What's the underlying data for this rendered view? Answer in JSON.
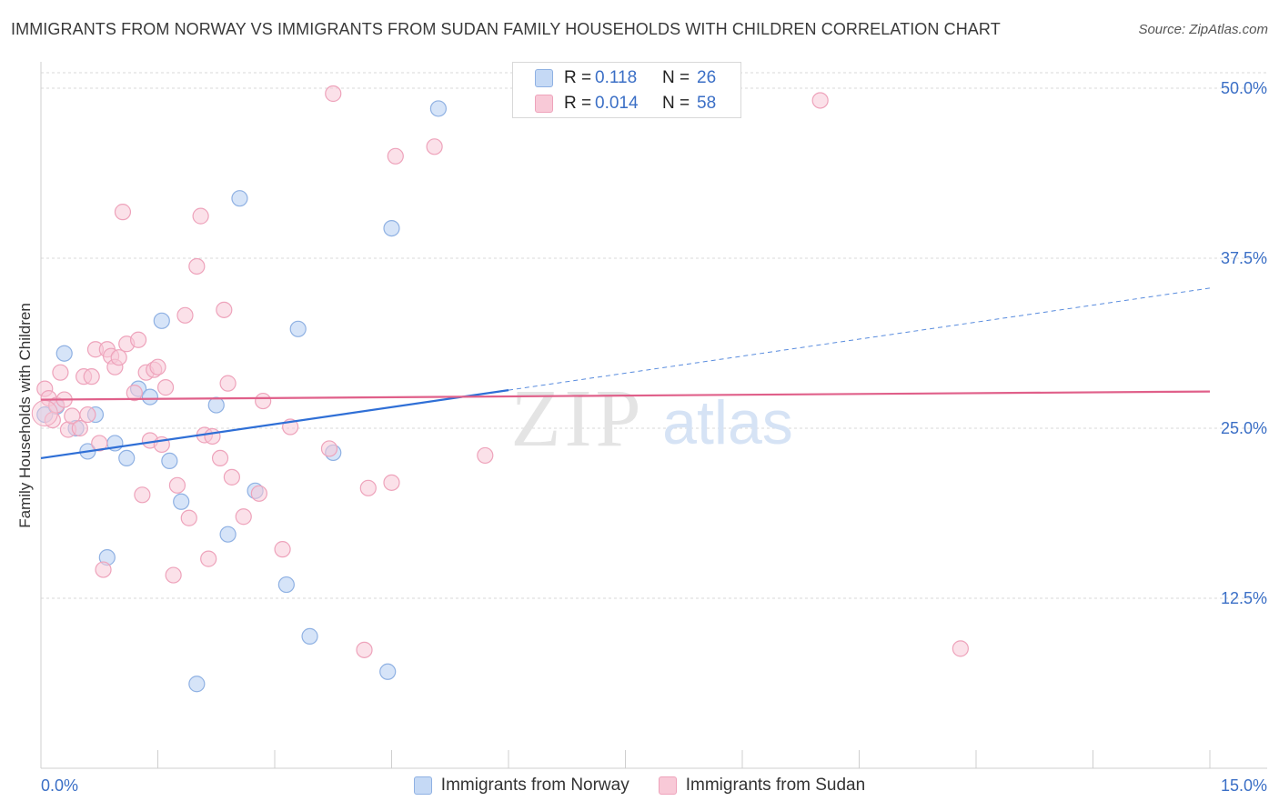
{
  "title": "IMMIGRANTS FROM NORWAY VS IMMIGRANTS FROM SUDAN FAMILY HOUSEHOLDS WITH CHILDREN CORRELATION CHART",
  "source": "Source: ZipAtlas.com",
  "watermark": {
    "zip": "ZIP",
    "atlas": "atlas"
  },
  "colors": {
    "norway_fill": "#c5d9f5",
    "norway_stroke": "#8fb1e3",
    "norway_line": "#2f6fd6",
    "sudan_fill": "#f8c9d7",
    "sudan_stroke": "#eea3bb",
    "sudan_line": "#e0608a",
    "axis_label": "#3b6fc6",
    "grid": "#d9d9d9"
  },
  "legend_box": {
    "norway": {
      "r_label": "R =",
      "r_value": "0.118",
      "n_label": "N =",
      "n_value": "26"
    },
    "sudan": {
      "r_label": "R =",
      "r_value": "0.014",
      "n_label": "N =",
      "n_value": "58"
    }
  },
  "chart_data": {
    "type": "scatter",
    "title": "IMMIGRANTS FROM NORWAY VS IMMIGRANTS FROM SUDAN FAMILY HOUSEHOLDS WITH CHILDREN CORRELATION CHART",
    "xlabel": "",
    "ylabel": "Family Households with Children",
    "xlim": [
      0,
      15
    ],
    "ylim": [
      0,
      50
    ],
    "x_tick_labels": {
      "left": "0.0%",
      "right": "15.0%"
    },
    "y_ticks": [
      {
        "value": 12.5,
        "label": "12.5%"
      },
      {
        "value": 25.0,
        "label": "25.0%"
      },
      {
        "value": 37.5,
        "label": "37.5%"
      },
      {
        "value": 50.0,
        "label": "50.0%"
      }
    ],
    "legend": [
      "Immigrants from Norway",
      "Immigrants from Sudan"
    ],
    "series": [
      {
        "name": "Immigrants from Norway",
        "r": 0.118,
        "n": 26,
        "trend": {
          "x0": 0,
          "y0": 22.8,
          "x1": 6.0,
          "y1": 27.8,
          "dashed_to_x": 15,
          "dashed_to_y": 35.3
        },
        "points": [
          [
            0.05,
            26.0
          ],
          [
            0.2,
            26.6
          ],
          [
            0.3,
            30.5
          ],
          [
            0.45,
            25.0
          ],
          [
            0.6,
            23.3
          ],
          [
            0.7,
            26.0
          ],
          [
            0.95,
            23.9
          ],
          [
            1.1,
            22.8
          ],
          [
            1.25,
            27.9
          ],
          [
            1.4,
            27.3
          ],
          [
            1.55,
            32.9
          ],
          [
            1.65,
            22.6
          ],
          [
            1.8,
            19.6
          ],
          [
            2.0,
            6.2
          ],
          [
            2.25,
            26.7
          ],
          [
            2.4,
            17.2
          ],
          [
            2.55,
            41.9
          ],
          [
            2.75,
            20.4
          ],
          [
            3.15,
            13.5
          ],
          [
            3.3,
            32.3
          ],
          [
            3.45,
            9.7
          ],
          [
            3.75,
            23.2
          ],
          [
            4.45,
            7.1
          ],
          [
            4.5,
            39.7
          ],
          [
            5.1,
            48.5
          ],
          [
            0.85,
            15.5
          ]
        ]
      },
      {
        "name": "Immigrants from Sudan",
        "r": 0.014,
        "n": 58,
        "trend": {
          "x0": 0,
          "y0": 27.1,
          "x1": 15,
          "y1": 27.7
        },
        "points": [
          [
            0.05,
            27.9
          ],
          [
            0.1,
            27.2
          ],
          [
            0.2,
            26.7
          ],
          [
            0.25,
            29.1
          ],
          [
            0.3,
            27.1
          ],
          [
            0.35,
            24.9
          ],
          [
            0.4,
            25.9
          ],
          [
            0.5,
            25.0
          ],
          [
            0.55,
            28.8
          ],
          [
            0.6,
            26.0
          ],
          [
            0.65,
            28.8
          ],
          [
            0.7,
            30.8
          ],
          [
            0.75,
            23.9
          ],
          [
            0.8,
            14.6
          ],
          [
            0.85,
            30.8
          ],
          [
            0.9,
            30.3
          ],
          [
            0.95,
            29.5
          ],
          [
            1.0,
            30.2
          ],
          [
            1.05,
            40.9
          ],
          [
            1.1,
            31.2
          ],
          [
            1.2,
            27.6
          ],
          [
            1.25,
            31.5
          ],
          [
            1.3,
            20.1
          ],
          [
            1.35,
            29.1
          ],
          [
            1.4,
            24.1
          ],
          [
            1.45,
            29.3
          ],
          [
            1.5,
            29.5
          ],
          [
            1.55,
            23.8
          ],
          [
            1.6,
            28.0
          ],
          [
            1.7,
            14.2
          ],
          [
            1.75,
            20.8
          ],
          [
            1.85,
            33.3
          ],
          [
            1.9,
            18.4
          ],
          [
            2.0,
            36.9
          ],
          [
            2.05,
            40.6
          ],
          [
            2.1,
            24.5
          ],
          [
            2.15,
            15.4
          ],
          [
            2.2,
            24.4
          ],
          [
            2.3,
            22.8
          ],
          [
            2.35,
            33.7
          ],
          [
            2.4,
            28.3
          ],
          [
            2.45,
            21.4
          ],
          [
            2.6,
            18.5
          ],
          [
            2.8,
            20.2
          ],
          [
            2.85,
            27.0
          ],
          [
            3.1,
            16.1
          ],
          [
            3.2,
            25.1
          ],
          [
            3.7,
            23.5
          ],
          [
            3.75,
            49.6
          ],
          [
            4.15,
            8.7
          ],
          [
            4.2,
            20.6
          ],
          [
            4.5,
            21.0
          ],
          [
            4.55,
            45.0
          ],
          [
            5.05,
            45.7
          ],
          [
            5.7,
            23.0
          ],
          [
            10.0,
            49.1
          ],
          [
            11.8,
            8.8
          ],
          [
            0.15,
            25.6
          ]
        ]
      }
    ]
  }
}
